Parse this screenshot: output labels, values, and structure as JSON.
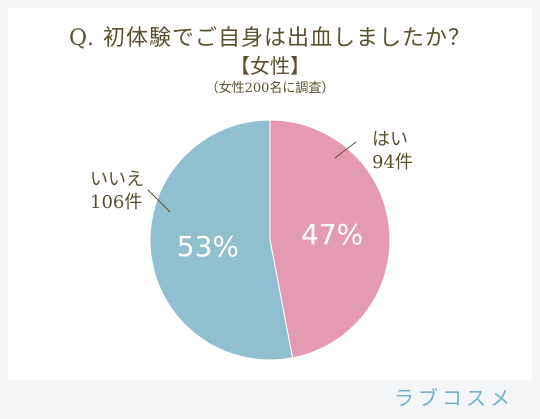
{
  "title": "Q. 初体験でご自身は出血しましたか？",
  "subtitle": "【女性】",
  "note": "（女性200名に調査）",
  "brand": "ラブコスメ",
  "colors": {
    "yes": "#e49ab3",
    "no": "#90bfcf",
    "text": "#5a5030"
  },
  "chart_data": {
    "type": "pie",
    "title": "Q. 初体験でご自身は出血しましたか？",
    "subtitle": "【女性】",
    "slices": [
      {
        "label": "はい",
        "count_label": "94件",
        "value": 94,
        "percent_label": "47%"
      },
      {
        "label": "いいえ",
        "count_label": "106件",
        "value": 106,
        "percent_label": "53%"
      }
    ]
  }
}
